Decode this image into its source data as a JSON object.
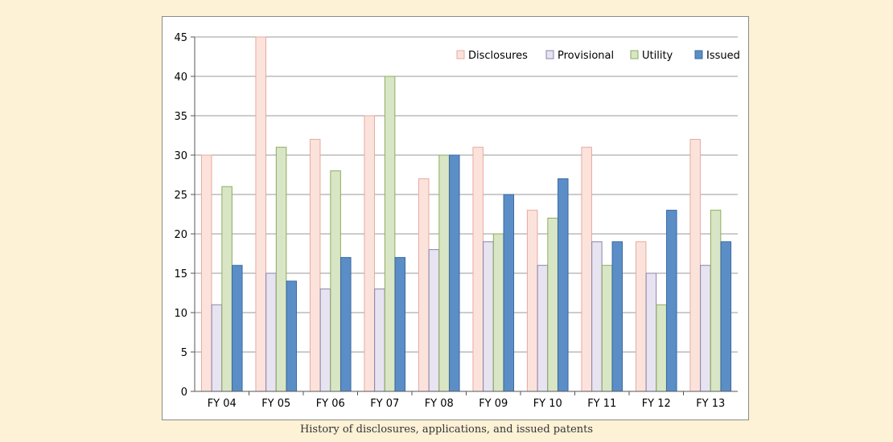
{
  "caption": "History of disclosures, applications, and issued patents",
  "chart_data": {
    "type": "bar",
    "title": "",
    "xlabel": "",
    "ylabel": "",
    "categories": [
      "FY 04",
      "FY 05",
      "FY 06",
      "FY 07",
      "FY 08",
      "FY 09",
      "FY 10",
      "FY 11",
      "FY 12",
      "FY 13"
    ],
    "ylim": [
      0,
      45
    ],
    "yticks": [
      0,
      5,
      10,
      15,
      20,
      25,
      30,
      35,
      40,
      45
    ],
    "grid": true,
    "legend_position": "top-right",
    "series": [
      {
        "name": "Disclosures",
        "fill": "#fbe3dc",
        "stroke": "#e8a9a0",
        "values": [
          30,
          45,
          32,
          35,
          27,
          31,
          23,
          31,
          19,
          32
        ]
      },
      {
        "name": "Provisional",
        "fill": "#e7e3f1",
        "stroke": "#8a84ab",
        "values": [
          11,
          15,
          13,
          13,
          18,
          19,
          16,
          19,
          15,
          16
        ]
      },
      {
        "name": "Utility",
        "fill": "#d9e6c5",
        "stroke": "#8cac5e",
        "values": [
          26,
          31,
          28,
          40,
          30,
          20,
          22,
          16,
          11,
          23
        ]
      },
      {
        "name": "Issued",
        "fill": "#5b8ec7",
        "stroke": "#3a6aa2",
        "values": [
          16,
          14,
          17,
          17,
          30,
          25,
          27,
          19,
          23,
          19
        ]
      }
    ]
  }
}
